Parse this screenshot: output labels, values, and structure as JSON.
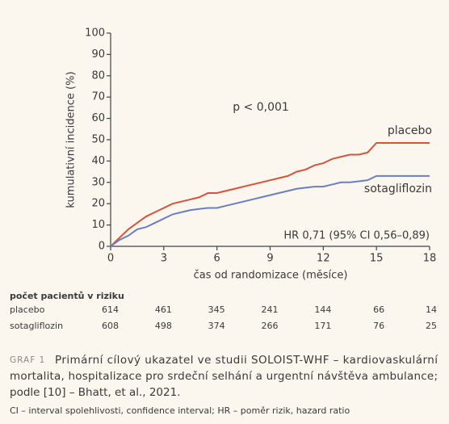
{
  "chart_data": {
    "type": "line",
    "xlabel": "čas od randomizace (měsíce)",
    "ylabel": "kumulativní incidence (%)",
    "x": [
      0,
      0.5,
      1,
      1.5,
      2,
      2.5,
      3,
      3.5,
      4,
      4.5,
      5,
      5.5,
      6,
      6.5,
      7,
      7.5,
      8,
      8.5,
      9,
      9.5,
      10,
      10.5,
      11,
      11.5,
      12,
      12.5,
      13,
      13.5,
      14,
      14.5,
      15,
      15.5,
      16,
      16.5,
      17,
      17.5,
      18
    ],
    "series": [
      {
        "name": "placebo",
        "color": "#d4533b",
        "values": [
          0,
          4,
          8,
          11,
          14,
          16,
          18,
          20,
          21,
          22,
          23,
          25,
          25,
          26,
          27,
          28,
          29,
          30,
          31,
          32,
          33,
          35,
          36,
          38,
          39,
          41,
          42,
          43,
          43,
          44,
          48.5,
          48.5,
          48.5,
          48.5,
          48.5,
          48.5,
          48.5
        ]
      },
      {
        "name": "sotagliflozin",
        "color": "#6a7ec2",
        "values": [
          0,
          3,
          5,
          8,
          9,
          11,
          13,
          15,
          16,
          17,
          17.5,
          18,
          18,
          19,
          20,
          21,
          22,
          23,
          24,
          25,
          26,
          27,
          27.5,
          28,
          28,
          29,
          30,
          30,
          30.5,
          31,
          33,
          33,
          33,
          33,
          33,
          33,
          33
        ]
      }
    ],
    "xlim": [
      0,
      18
    ],
    "xticks": [
      0,
      3,
      6,
      9,
      12,
      15,
      18
    ],
    "ylim": [
      0,
      100
    ],
    "yticks": [
      0,
      10,
      20,
      30,
      40,
      50,
      60,
      70,
      80,
      90,
      100
    ],
    "annotations": [
      "p < 0,001",
      "HR 0,71 (95% CI 0,56–0,89)"
    ]
  },
  "risk_table": {
    "title": "počet pacientů v riziku",
    "rows": [
      {
        "name": "placebo",
        "values": [
          614,
          461,
          345,
          241,
          144,
          66,
          14
        ]
      },
      {
        "name": "sotagliflozin",
        "values": [
          608,
          498,
          374,
          266,
          171,
          76,
          25
        ]
      }
    ]
  },
  "caption": {
    "label": "GRAF 1",
    "lines": [
      "Primární cílový ukazatel ve studii SOLOIST-WHF – kardiovaskulární",
      "mortalita, hospitalizace pro srdeční selhání a urgentní návštěva ambulance;",
      "podle [10] – Bhatt, et al., 2021."
    ]
  },
  "footnote": "CI – interval spolehlivosti, confidence interval; HR – poměr rizik, hazard ratio"
}
